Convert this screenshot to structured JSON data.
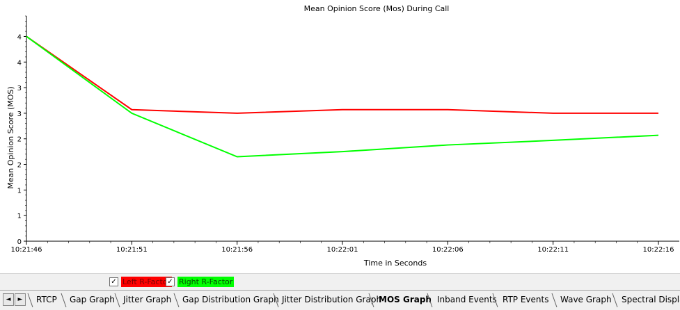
{
  "chart_data": {
    "type": "line",
    "title": "Mean Opinion Score (Mos) During Call",
    "xlabel": "Time in Seconds",
    "ylabel": "Mean Opinion Score (MOS)",
    "categories": [
      "10:21:46",
      "10:21:51",
      "10:21:56",
      "10:22:01",
      "10:22:06",
      "10:22:11",
      "10:22:16"
    ],
    "ytick_labels": [
      "0",
      "1",
      "1",
      "2",
      "2",
      "3",
      "3",
      "4",
      "4"
    ],
    "ytick_values": [
      0,
      0.5,
      1.0,
      1.5,
      2.0,
      2.5,
      3.0,
      3.5,
      4.0
    ],
    "ylim": [
      0,
      4.4
    ],
    "grid": false,
    "legend_position": "bottom-left",
    "series": [
      {
        "name": "Left R-Factor",
        "color": "#ff0000",
        "values": [
          4.0,
          2.57,
          2.5,
          2.57,
          2.57,
          2.5,
          2.5
        ]
      },
      {
        "name": "Right R-Factor",
        "color": "#00ff00",
        "values": [
          4.0,
          2.5,
          1.65,
          1.75,
          1.88,
          1.97,
          2.07
        ]
      }
    ]
  },
  "legend": {
    "items": [
      {
        "label": "Left R-Factor",
        "checked": "✓",
        "bg": "#ff0000"
      },
      {
        "label": "Right R-Factor",
        "checked": "✓",
        "bg": "#00ff00"
      }
    ]
  },
  "tabs": {
    "nav_prev": "◄",
    "nav_next": "►",
    "items": [
      {
        "label": "RTCP"
      },
      {
        "label": "Gap Graph"
      },
      {
        "label": "Jitter Graph"
      },
      {
        "label": "Gap Distribution Graph"
      },
      {
        "label": "Jitter Distribution Graph"
      },
      {
        "label": "MOS Graph",
        "active": true
      },
      {
        "label": "Inband Events"
      },
      {
        "label": "RTP Events"
      },
      {
        "label": "Wave Graph"
      },
      {
        "label": "Spectral Display"
      }
    ]
  }
}
